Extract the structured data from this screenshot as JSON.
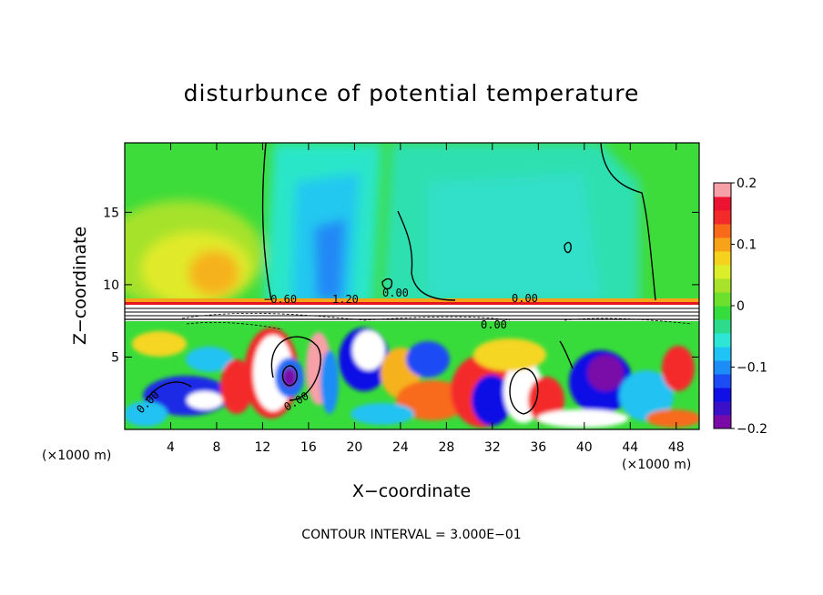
{
  "chart_data": {
    "type": "heatmap",
    "title": "disturbunce of potential temperature",
    "xlabel": "X−coordinate",
    "ylabel": "Z−coordinate",
    "x_unit": "(×1000 m)",
    "y_unit": "(×1000 m)",
    "xlim": [
      0,
      50
    ],
    "ylim": [
      0,
      19.8
    ],
    "x_ticks": [
      4,
      8,
      12,
      16,
      20,
      24,
      28,
      32,
      36,
      40,
      44,
      48
    ],
    "y_ticks": [
      5,
      10,
      15
    ],
    "colorbar": {
      "range": [
        -0.2,
        0.2
      ],
      "tick_values": [
        0.2,
        0.1,
        0,
        -0.1,
        -0.2
      ],
      "tick_labels": [
        "0.2",
        "0.1",
        "0",
        "−0.1",
        "−0.2"
      ],
      "colors": [
        "#7a0aa8",
        "#3a10c8",
        "#1010e6",
        "#1c4cf5",
        "#1c8cf7",
        "#20c4f4",
        "#2ee6d6",
        "#2cdc8c",
        "#34dc3c",
        "#6ce02c",
        "#a8e22a",
        "#dcee2a",
        "#f4d21e",
        "#f8a21a",
        "#f86a1a",
        "#f42a2a",
        "#ec1232",
        "#f8a0a8"
      ]
    },
    "contour_interval_label": "CONTOUR INTERVAL = 3.000E−01",
    "contour_labels": [
      "0.00",
      "0.00",
      "0.00",
      "0.00",
      "0.00",
      "−0.60",
      "1.20"
    ],
    "layers": [
      {
        "name": "upper-left warm region",
        "x": [
          0,
          13
        ],
        "z": [
          9,
          19.8
        ],
        "value": 0.07
      },
      {
        "name": "central cool column",
        "x": [
          15,
          24
        ],
        "z": [
          9,
          19.8
        ],
        "value": -0.08
      },
      {
        "name": "right cool region",
        "x": [
          24,
          42
        ],
        "z": [
          9,
          19.8
        ],
        "value": -0.04
      },
      {
        "name": "upper-right near-zero region",
        "x": [
          42,
          50
        ],
        "z": [
          9,
          19.8
        ],
        "value": 0.0
      },
      {
        "name": "inversion layer",
        "x": [
          0,
          50
        ],
        "z": [
          7.5,
          9.0
        ],
        "value": 0.3
      },
      {
        "name": "mixed lower layer",
        "x": [
          0,
          50
        ],
        "z": [
          0,
          7.5
        ],
        "value": 0.0
      }
    ]
  }
}
